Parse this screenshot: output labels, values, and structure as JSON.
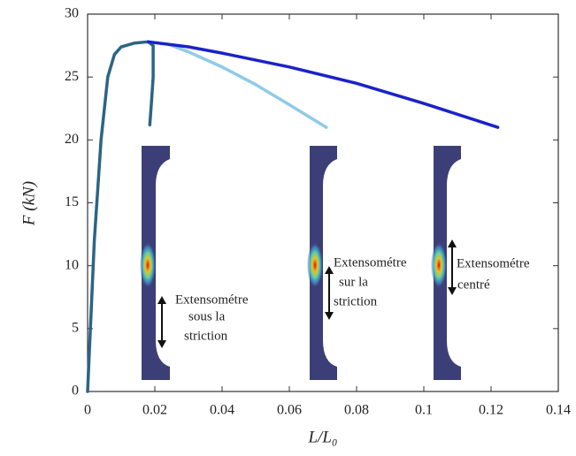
{
  "chart_data": {
    "type": "line",
    "xlabel": "L/L₀",
    "ylabel": "F (kN)",
    "xlim": [
      0,
      0.14
    ],
    "ylim": [
      0,
      30
    ],
    "xticks": [
      0,
      0.02,
      0.04,
      0.06,
      0.08,
      0.1,
      0.12,
      0.14
    ],
    "yticks": [
      0,
      5,
      10,
      15,
      20,
      25,
      30
    ],
    "series": [
      {
        "color": "#2b6584",
        "x": [
          0,
          0.002,
          0.004,
          0.006,
          0.008,
          0.01,
          0.014,
          0.018,
          0.0195,
          0.0195,
          0.019,
          0.0185
        ],
        "values": [
          0,
          12,
          20,
          25,
          26.8,
          27.4,
          27.7,
          27.8,
          27.5,
          25,
          23,
          21.2
        ]
      },
      {
        "color": "#8ecbe8",
        "x": [
          0.018,
          0.024,
          0.03,
          0.04,
          0.05,
          0.06,
          0.071
        ],
        "values": [
          27.8,
          27.6,
          27,
          25.8,
          24.4,
          22.8,
          21
        ]
      },
      {
        "color": "#1a22c8",
        "x": [
          0.018,
          0.03,
          0.04,
          0.06,
          0.08,
          0.1,
          0.122
        ],
        "values": [
          27.8,
          27.4,
          26.9,
          25.8,
          24.5,
          22.9,
          21
        ]
      }
    ],
    "annotations": [
      {
        "lines": [
          "Extensométre",
          "sous la",
          "striction"
        ]
      },
      {
        "lines": [
          "Extensométre",
          "sur la",
          "striction"
        ]
      },
      {
        "lines": [
          "Extensométre",
          "centré"
        ]
      }
    ]
  }
}
